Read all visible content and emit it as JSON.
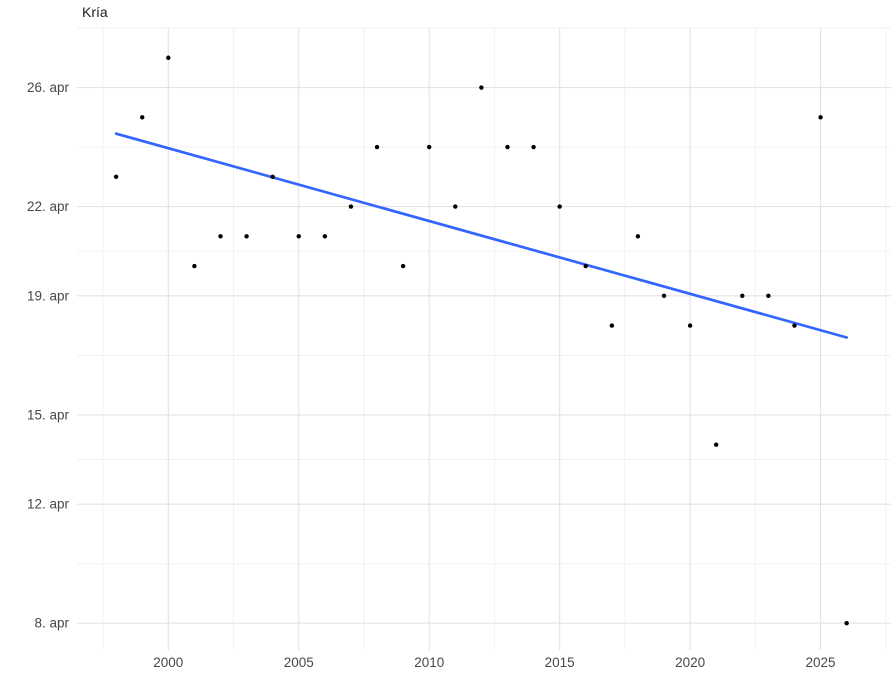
{
  "chart_data": {
    "type": "scatter",
    "title": "Kría",
    "xlabel": "",
    "ylabel": "",
    "y_unit": "day of April (arrival date)",
    "x": [
      1998,
      1999,
      2000,
      2001,
      2002,
      2003,
      2004,
      2005,
      2006,
      2007,
      2008,
      2009,
      2010,
      2011,
      2012,
      2013,
      2014,
      2015,
      2016,
      2017,
      2018,
      2019,
      2020,
      2021,
      2022,
      2023,
      2024,
      2025,
      2026
    ],
    "y": [
      23,
      25,
      27,
      20,
      21,
      21,
      23,
      21,
      21,
      22,
      24,
      20,
      24,
      22,
      26,
      24,
      24,
      22,
      20,
      18,
      21,
      19,
      18,
      14,
      19,
      19,
      18,
      25,
      8
    ],
    "trend_line": {
      "x1": 1998,
      "y1": 24.45,
      "x2": 2026,
      "y2": 17.6
    },
    "x_ticks": [
      {
        "value": 2000,
        "label": "2000"
      },
      {
        "value": 2005,
        "label": "2005"
      },
      {
        "value": 2010,
        "label": "2010"
      },
      {
        "value": 2015,
        "label": "2015"
      },
      {
        "value": 2020,
        "label": "2020"
      },
      {
        "value": 2025,
        "label": "2025"
      }
    ],
    "y_ticks": [
      {
        "value": 26,
        "label": "26. apr"
      },
      {
        "value": 22,
        "label": "22. apr"
      },
      {
        "value": 19,
        "label": "19. apr"
      },
      {
        "value": 15,
        "label": "15. apr"
      },
      {
        "value": 12,
        "label": "12. apr"
      },
      {
        "value": 8,
        "label": "8. apr"
      }
    ],
    "x_minor_ticks": [
      1997.5,
      2002.5,
      2007.5,
      2012.5,
      2017.5,
      2022.5,
      2027.5
    ],
    "y_minor_ticks": [
      28,
      24,
      20.5,
      17,
      13.5,
      10
    ],
    "xlim": [
      1996.5,
      2027.7
    ],
    "ylim": [
      7.1,
      28.0
    ],
    "grid": true,
    "legend": "none",
    "colors": {
      "point": "#000000",
      "trend": "#3366FF",
      "grid_major": "#E3E3E3",
      "grid_minor": "#F0F0F0",
      "tick_text": "#474747",
      "title_text": "#1C1C1C",
      "background": "#FFFFFF"
    }
  }
}
